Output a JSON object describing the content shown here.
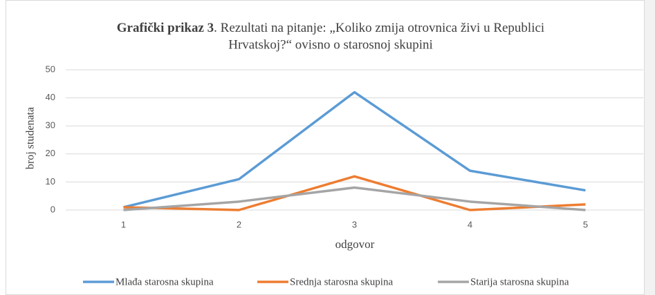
{
  "chart_data": {
    "type": "line",
    "title_label": "Grafički prikaz 3",
    "title": ". Rezultati na pitanje: „Koliko zmija otrovnica živi u Republici",
    "title_line2": "Hrvatskoj?“ ovisno o starosnoj skupini",
    "xlabel": "odgovor",
    "ylabel": "broj studenata",
    "categories": [
      "1",
      "2",
      "3",
      "4",
      "5"
    ],
    "series": [
      {
        "name": "Mlađa starosna skupina",
        "color": "#5b9bd5",
        "values": [
          1,
          11,
          42,
          14,
          7
        ]
      },
      {
        "name": "Srednja starosna skupina",
        "color": "#ed7d31",
        "values": [
          1,
          0,
          12,
          0,
          2
        ]
      },
      {
        "name": "Starija starosna skupina",
        "color": "#a5a5a5",
        "values": [
          0,
          3,
          8,
          3,
          0
        ]
      }
    ],
    "ylim": [
      0,
      50
    ],
    "yticks": [
      0,
      10,
      20,
      30,
      40,
      50
    ],
    "grid": true,
    "legend": "bottom"
  }
}
